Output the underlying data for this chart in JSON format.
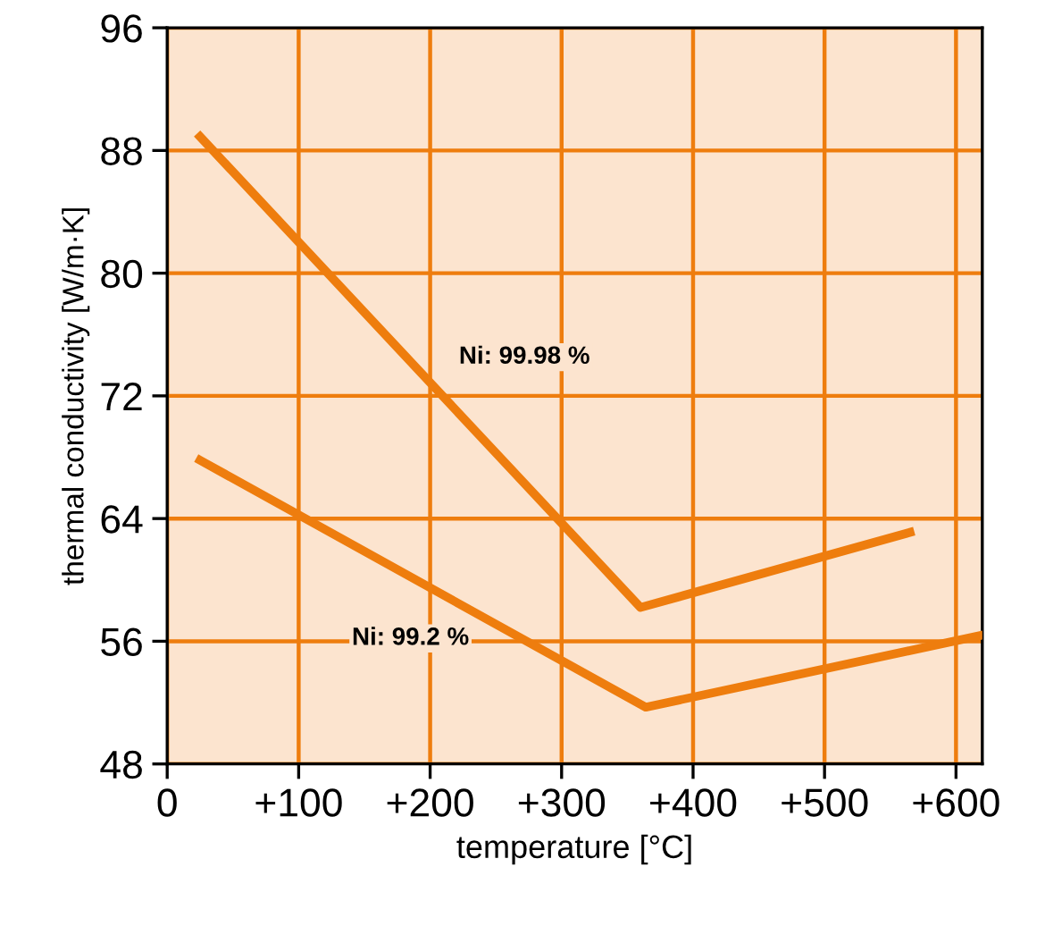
{
  "chart_data": {
    "type": "line",
    "xlabel": "temperature [°C]",
    "ylabel": "thermal conductivity [W/m·K]",
    "series": [
      {
        "name": "Ni: 99.98 %",
        "color": "#ee7d0e",
        "x": [
          25,
          360,
          565
        ],
        "values": [
          88.9,
          58.2,
          63.1
        ]
      },
      {
        "name": "Ni: 99.2 %",
        "color": "#ee7d0e",
        "x": [
          25,
          364,
          620
        ],
        "values": [
          67.8,
          51.7,
          56.4
        ]
      }
    ],
    "xlim": [
      0,
      620
    ],
    "ylim": [
      48,
      96
    ],
    "xticks": [
      0,
      {
        "value": 100,
        "label": "+100"
      },
      {
        "value": 200,
        "label": "+200"
      },
      {
        "value": 300,
        "label": "+300"
      },
      {
        "value": 400,
        "label": "+400"
      },
      {
        "value": 500,
        "label": "+500"
      },
      {
        "value": 600,
        "label": "+600"
      }
    ],
    "yticks": [
      48,
      56,
      64,
      72,
      80,
      88,
      96
    ],
    "grid": true,
    "marker": "none",
    "line_style": "solid"
  }
}
